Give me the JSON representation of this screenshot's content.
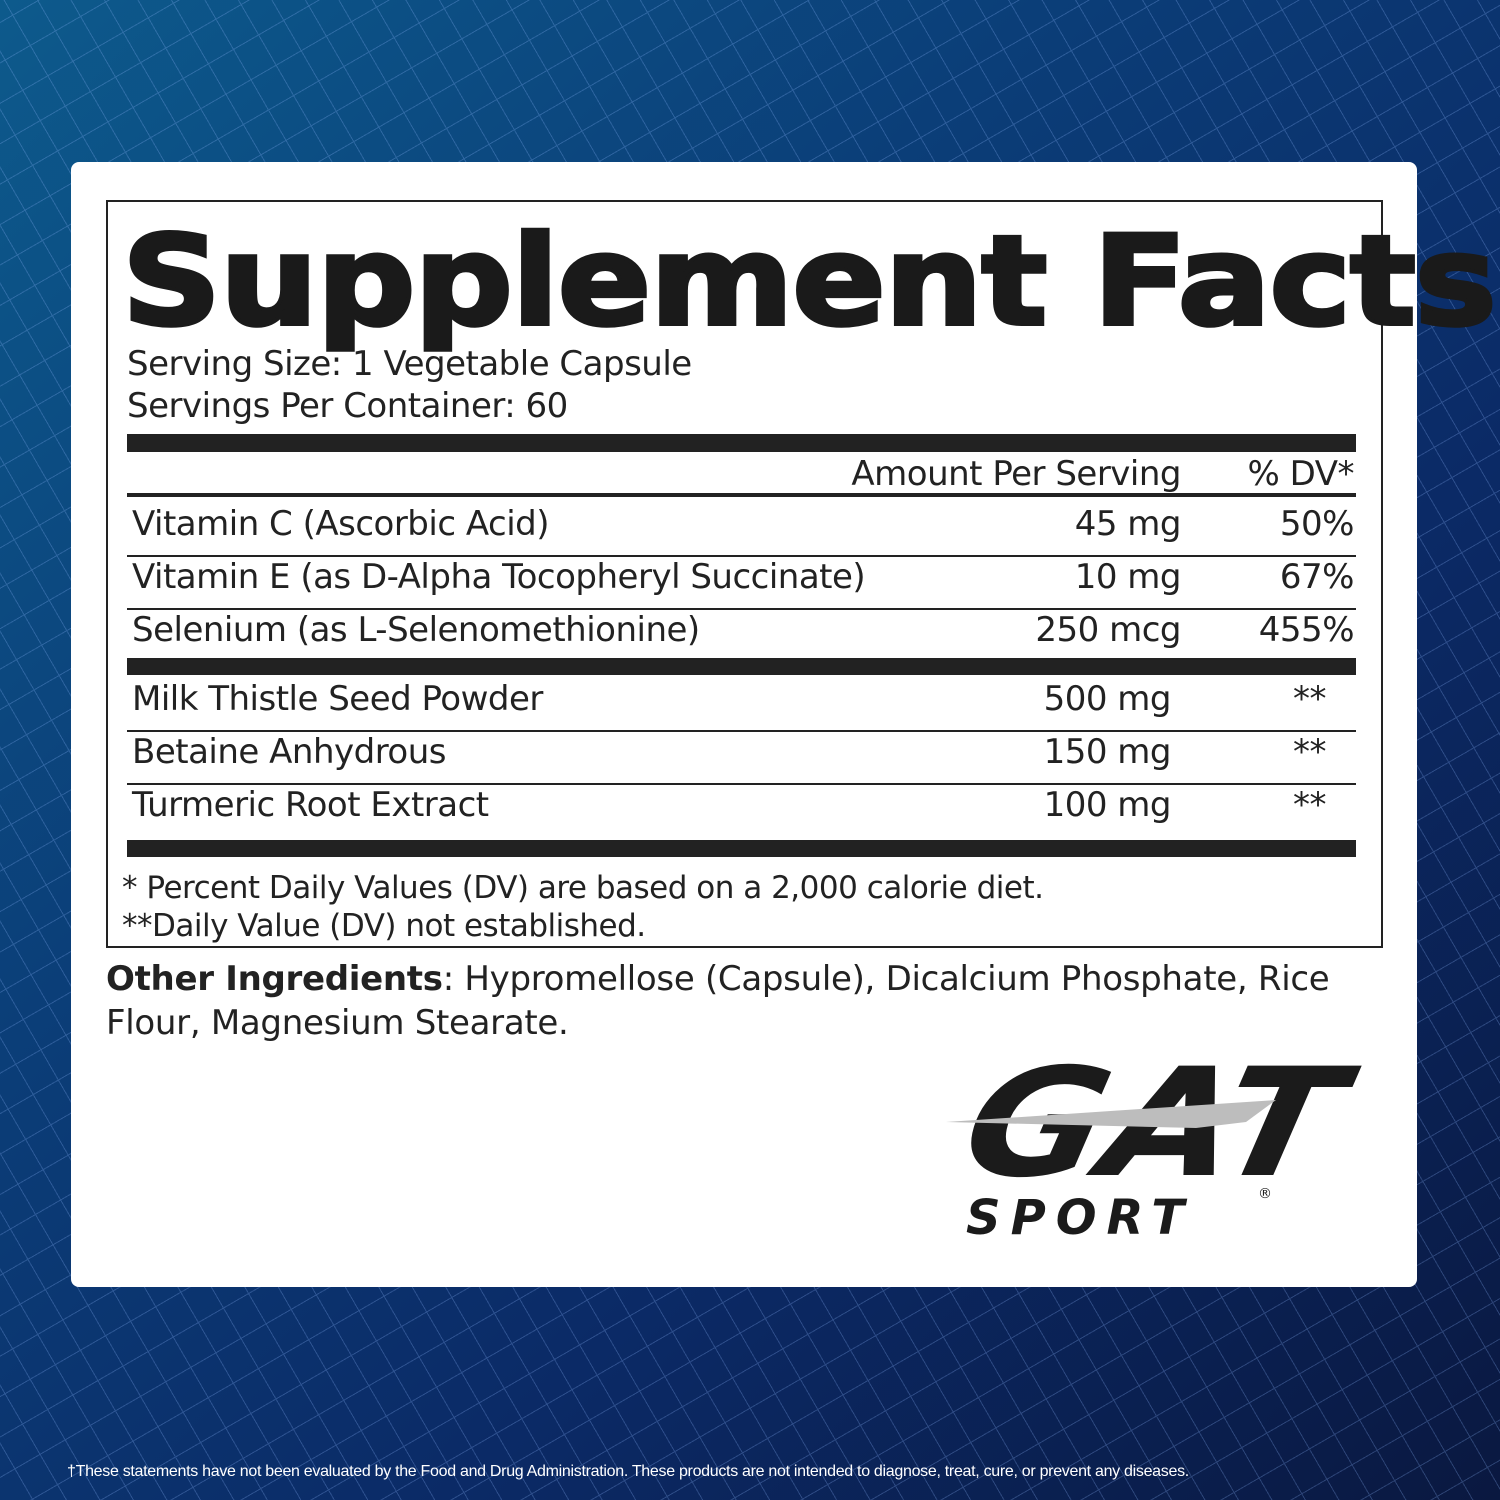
{
  "title": "Supplement Facts",
  "serving_size": "Serving Size: 1 Vegetable Capsule",
  "servings_per_container": "Servings Per Container: 60",
  "header": {
    "amount": "Amount Per Serving",
    "dv": "% DV*"
  },
  "rows": [
    {
      "name": "Vitamin C (Ascorbic Acid)",
      "amount": "45 mg",
      "dv": "50%"
    },
    {
      "name": "Vitamin E (as D-Alpha Tocopheryl Succinate)",
      "amount": "10 mg",
      "dv": "67%"
    },
    {
      "name": "Selenium (as L-Selenomethionine)",
      "amount": "250 mcg",
      "dv": "455%"
    },
    {
      "name": "Milk Thistle Seed Powder",
      "amount": "500 mg",
      "dv": "**"
    },
    {
      "name": "Betaine Anhydrous",
      "amount": "150 mg",
      "dv": "**"
    },
    {
      "name": "Turmeric Root Extract",
      "amount": "100 mg",
      "dv": "**"
    }
  ],
  "footnotes": [
    "* Percent Daily Values (DV) are based on a 2,000 calorie diet.",
    "**Daily Value (DV) not established."
  ],
  "other_ingredients": {
    "label": "Other Ingredients",
    "text": ": Hypromellose (Capsule), Dicalcium Phosphate, Rice Flour, Magnesium Stearate."
  },
  "logo": {
    "brand": "GAT",
    "sub": "SPORT",
    "mark": "®"
  },
  "disclaimer": "†These statements have not been evaluated by the Food and Drug Administration. These products are not intended to diagnose, treat, cure, or prevent any diseases.",
  "colors": {
    "background": "#0b2a66",
    "card": "#ffffff",
    "text": "#222222",
    "logo_swoosh": "#bdbdbd"
  }
}
